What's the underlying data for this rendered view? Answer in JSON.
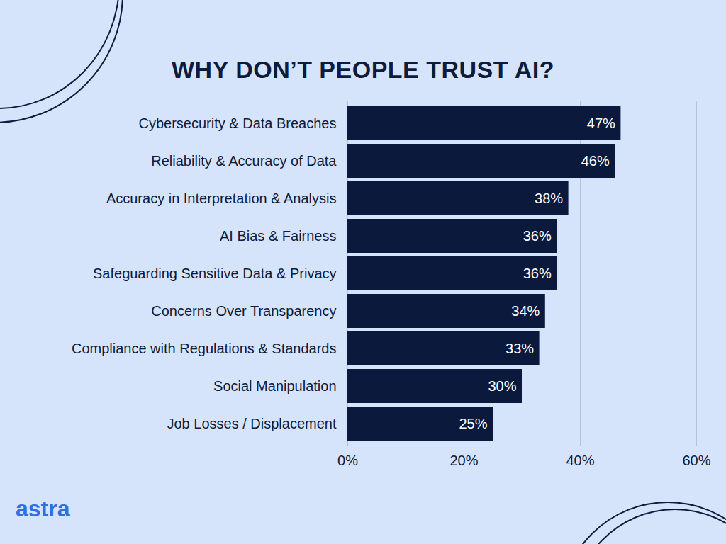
{
  "chart_data": {
    "type": "bar",
    "orientation": "horizontal",
    "title": "WHY DON’T PEOPLE TRUST AI?",
    "source": "astra",
    "categories": [
      "Cybersecurity & Data Breaches",
      "Reliability & Accuracy of Data",
      "Accuracy in Interpretation & Analysis",
      "AI Bias & Fairness",
      "Safeguarding Sensitive Data & Privacy",
      "Concerns Over Transparency",
      "Compliance with Regulations & Standards",
      "Social Manipulation",
      "Job Losses / Displacement"
    ],
    "values": [
      47,
      46,
      38,
      36,
      36,
      34,
      33,
      30,
      25
    ],
    "value_labels": [
      "47%",
      "46%",
      "38%",
      "36%",
      "36%",
      "34%",
      "33%",
      "30%",
      "25%"
    ],
    "color": "#0b1a3c",
    "xlim": [
      0,
      60
    ],
    "xticks": [
      {
        "value": 0,
        "label": "0%"
      },
      {
        "value": 20,
        "label": "20%"
      },
      {
        "value": 40,
        "label": "40%"
      },
      {
        "value": 60,
        "label": "60%"
      }
    ],
    "grid": true,
    "data_labels": true
  }
}
